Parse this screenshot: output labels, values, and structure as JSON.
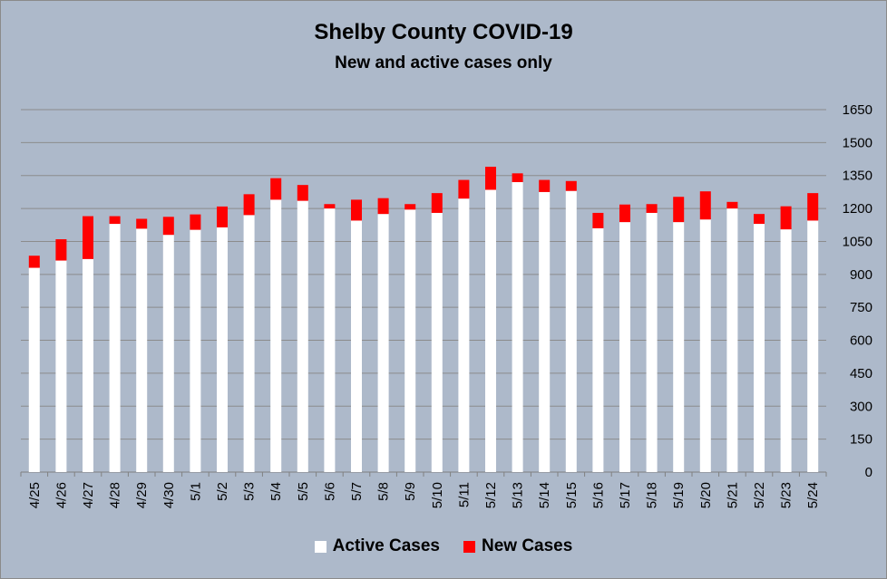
{
  "chart_data": {
    "type": "bar",
    "stacked": true,
    "title": "Shelby County COVID-19",
    "subtitle": "New and active cases only",
    "categories": [
      "4/25",
      "4/26",
      "4/27",
      "4/28",
      "4/29",
      "4/30",
      "5/1",
      "5/2",
      "5/3",
      "5/4",
      "5/5",
      "5/6",
      "5/7",
      "5/8",
      "5/9",
      "5/10",
      "5/11",
      "5/12",
      "5/13",
      "5/14",
      "5/15",
      "5/16",
      "5/17",
      "5/18",
      "5/19",
      "5/20",
      "5/21",
      "5/22",
      "5/23",
      "5/24"
    ],
    "series": [
      {
        "name": "Active Cases",
        "color": "#ffffff",
        "values": [
          930,
          963,
          970,
          1130,
          1108,
          1080,
          1103,
          1114,
          1170,
          1240,
          1235,
          1200,
          1145,
          1175,
          1195,
          1180,
          1245,
          1285,
          1320,
          1275,
          1280,
          1110,
          1138,
          1180,
          1138,
          1150,
          1200,
          1130,
          1105,
          1145
        ]
      },
      {
        "name": "New Cases",
        "color": "#ff0000",
        "values": [
          55,
          97,
          195,
          35,
          45,
          82,
          70,
          95,
          95,
          98,
          72,
          20,
          95,
          72,
          25,
          90,
          85,
          105,
          40,
          55,
          45,
          70,
          80,
          40,
          115,
          128,
          30,
          45,
          105,
          125
        ]
      }
    ],
    "ylim": [
      0,
      1650
    ],
    "yticks": [
      0,
      150,
      300,
      450,
      600,
      750,
      900,
      1050,
      1200,
      1350,
      1500,
      1650
    ],
    "y_axis_side": "right",
    "grid": true,
    "legend_position": "bottom"
  }
}
